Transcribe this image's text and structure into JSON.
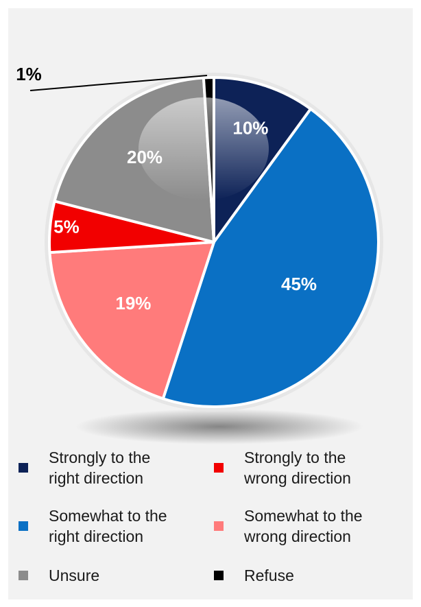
{
  "chart_data": {
    "type": "pie",
    "slices": [
      {
        "label": "Strongly to the right direction",
        "value": 10,
        "value_label": "10%",
        "color": "#0d2257",
        "label_color": "#ffffff"
      },
      {
        "label": "Somewhat to the right direction",
        "value": 45,
        "value_label": "45%",
        "color": "#0a70c4",
        "label_color": "#ffffff"
      },
      {
        "label": "Somewhat to the wrong direction",
        "value": 19,
        "value_label": "19%",
        "color": "#ff7b7b",
        "label_color": "#ffffff"
      },
      {
        "label": "Strongly to the wrong direction",
        "value": 5,
        "value_label": "5%",
        "color": "#f20000",
        "label_color": "#ffffff"
      },
      {
        "label": "Unsure",
        "value": 20,
        "value_label": "20%",
        "color": "#8c8c8c",
        "label_color": "#ffffff"
      },
      {
        "label": "Refuse",
        "value": 1,
        "value_label": "1%",
        "color": "#000000",
        "label_color": "#000000"
      }
    ],
    "start": "12 o'clock",
    "direction": "clockwise",
    "legend_position": "bottom"
  },
  "legend": [
    {
      "text": "Strongly to the\nright direction",
      "color": "#0d2257"
    },
    {
      "text": "Strongly to the\nwrong direction",
      "color": "#f20000"
    },
    {
      "text": "Somewhat to the\nright direction",
      "color": "#0a70c4"
    },
    {
      "text": "Somewhat to the\nwrong direction",
      "color": "#ff7b7b"
    },
    {
      "text": "Unsure",
      "color": "#8c8c8c"
    },
    {
      "text": "Refuse",
      "color": "#000000"
    }
  ]
}
